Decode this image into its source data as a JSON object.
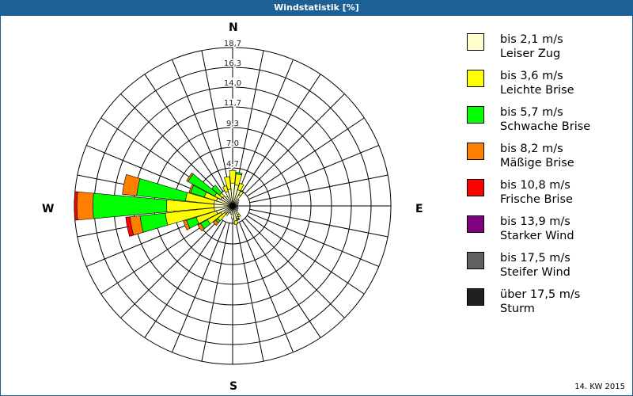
{
  "title": "Windstatistik [%]",
  "footer": "14. KW 2015",
  "compass": {
    "n": "N",
    "e": "E",
    "s": "S",
    "w": "W"
  },
  "legend": [
    {
      "range": "bis 2,1 m/s",
      "name": "Leiser Zug",
      "color": "#ffffcc"
    },
    {
      "range": "bis 3,6 m/s",
      "name": "Leichte Brise",
      "color": "#ffff00"
    },
    {
      "range": "bis 5,7 m/s",
      "name": "Schwache Brise",
      "color": "#00ff00"
    },
    {
      "range": "bis 8,2 m/s",
      "name": "Mäßige Brise",
      "color": "#ff8000"
    },
    {
      "range": "bis 10,8 m/s",
      "name": "Frische Brise",
      "color": "#ff0000"
    },
    {
      "range": "bis 13,9 m/s",
      "name": "Starker Wind",
      "color": "#800080"
    },
    {
      "range": "bis 17,5 m/s",
      "name": "Steifer Wind",
      "color": "#606060"
    },
    {
      "range": "über 17,5 m/s",
      "name": "Sturm",
      "color": "#202020"
    }
  ],
  "chart_data": {
    "type": "wind-rose",
    "title": "Windstatistik [%]",
    "unit": "%",
    "ring_labels": [
      "4,7",
      "7,0",
      "9,3",
      "11,7",
      "14,0",
      "16,3",
      "18,7"
    ],
    "rmax": 18.7,
    "sectors": 32,
    "legend_position": "right",
    "series": [
      "bis 2,1 m/s",
      "bis 3,6 m/s",
      "bis 5,7 m/s",
      "bis 8,2 m/s",
      "bis 10,8 m/s",
      "bis 13,9 m/s",
      "bis 17,5 m/s",
      "über 17,5 m/s"
    ],
    "cumulative_by_direction": [
      {
        "dir": 0,
        "cum": [
          0.3,
          2.7,
          4.2
        ]
      },
      {
        "dir": 11.25,
        "cum": [
          0.3,
          2.5,
          3.8,
          4.0
        ]
      },
      {
        "dir": 22.5,
        "cum": [
          0.3,
          2.0,
          2.8
        ]
      },
      {
        "dir": 33.75,
        "cum": [
          0.3,
          1.5,
          2.0
        ]
      },
      {
        "dir": 45,
        "cum": [
          0.3,
          1.0
        ]
      },
      {
        "dir": 56.25,
        "cum": [
          0.3,
          0.8
        ]
      },
      {
        "dir": 67.5,
        "cum": [
          0.3,
          0.7
        ]
      },
      {
        "dir": 78.75,
        "cum": [
          0.3,
          0.6
        ]
      },
      {
        "dir": 90,
        "cum": [
          0.3,
          0.6
        ]
      },
      {
        "dir": 101.25,
        "cum": [
          0.3,
          0.6
        ]
      },
      {
        "dir": 112.5,
        "cum": [
          0.3,
          0.7
        ]
      },
      {
        "dir": 123.75,
        "cum": [
          0.3,
          0.7
        ]
      },
      {
        "dir": 135,
        "cum": [
          0.3,
          0.8
        ]
      },
      {
        "dir": 146.25,
        "cum": [
          0.3,
          1.2,
          1.5
        ]
      },
      {
        "dir": 157.5,
        "cum": [
          0.3,
          1.4,
          1.6,
          1.6,
          1.6,
          1.6,
          1.6,
          1.8
        ]
      },
      {
        "dir": 168.75,
        "cum": [
          0.3,
          1.8,
          2.2
        ]
      },
      {
        "dir": 180,
        "cum": [
          0.3,
          1.5
        ]
      },
      {
        "dir": 191.25,
        "cum": [
          0.3,
          1.0
        ]
      },
      {
        "dir": 202.5,
        "cum": [
          0.3,
          0.9
        ]
      },
      {
        "dir": 213.75,
        "cum": [
          0.3,
          1.0,
          1.3
        ]
      },
      {
        "dir": 225,
        "cum": [
          0.3,
          1.2,
          2.3,
          2.6,
          3.0
        ]
      },
      {
        "dir": 236.25,
        "cum": [
          0.3,
          1.6,
          3.4,
          4.3,
          4.7
        ]
      },
      {
        "dir": 247.5,
        "cum": [
          0.3,
          2.0,
          4.5,
          5.7,
          6.1
        ]
      },
      {
        "dir": 258.75,
        "cum": [
          0.3,
          2.2,
          8.0,
          11.0,
          12.2,
          12.7
        ]
      },
      {
        "dir": 270,
        "cum": [
          0.3,
          2.2,
          7.8,
          16.5,
          18.4,
          18.7
        ]
      },
      {
        "dir": 281.25,
        "cum": [
          0.3,
          2.2,
          5.6,
          11.4,
          13.1
        ]
      },
      {
        "dir": 292.5,
        "cum": [
          0.3,
          2.0,
          3.5,
          5.2,
          5.4
        ]
      },
      {
        "dir": 303.75,
        "cum": [
          0.3,
          1.6,
          2.4,
          6.0,
          6.2
        ]
      },
      {
        "dir": 315,
        "cum": [
          0.3,
          1.5,
          2.0,
          3.2
        ]
      },
      {
        "dir": 326.25,
        "cum": [
          0.3,
          1.3
        ]
      },
      {
        "dir": 337.5,
        "cum": [
          0.3,
          1.8,
          2.5
        ]
      },
      {
        "dir": 348.75,
        "cum": [
          0.3,
          2.0,
          3.5
        ]
      }
    ]
  }
}
